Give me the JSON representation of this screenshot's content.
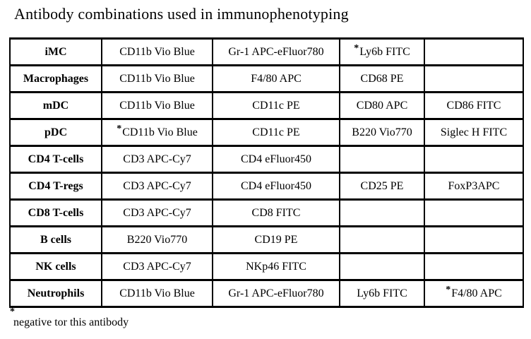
{
  "title": "Antibody combinations used in immunophenotyping",
  "footnote": {
    "marker": "*",
    "text": "negative tor this antibody"
  },
  "colors": {
    "text": "#000000",
    "border": "#000000",
    "background": "#ffffff"
  },
  "table": {
    "rows": [
      {
        "cell_type": "iMC",
        "antibodies": [
          {
            "text": "CD11b Vio Blue",
            "negative": false
          },
          {
            "text": "Gr-1 APC-eFluor780",
            "negative": false
          },
          {
            "text": "Ly6b FITC",
            "negative": true
          },
          {
            "text": "",
            "negative": false
          }
        ]
      },
      {
        "cell_type": "Macrophages",
        "antibodies": [
          {
            "text": "CD11b Vio Blue",
            "negative": false
          },
          {
            "text": "F4/80 APC",
            "negative": false
          },
          {
            "text": "CD68 PE",
            "negative": false
          },
          {
            "text": "",
            "negative": false
          }
        ]
      },
      {
        "cell_type": "mDC",
        "antibodies": [
          {
            "text": "CD11b Vio Blue",
            "negative": false
          },
          {
            "text": "CD11c PE",
            "negative": false
          },
          {
            "text": "CD80 APC",
            "negative": false
          },
          {
            "text": "CD86 FITC",
            "negative": false
          }
        ]
      },
      {
        "cell_type": "pDC",
        "antibodies": [
          {
            "text": "CD11b Vio Blue",
            "negative": true
          },
          {
            "text": "CD11c PE",
            "negative": false
          },
          {
            "text": "B220 Vio770",
            "negative": false
          },
          {
            "text": "Siglec H FITC",
            "negative": false
          }
        ]
      },
      {
        "cell_type": "CD4 T-cells",
        "antibodies": [
          {
            "text": "CD3 APC-Cy7",
            "negative": false
          },
          {
            "text": "CD4 eFluor450",
            "negative": false
          },
          {
            "text": "",
            "negative": false
          },
          {
            "text": "",
            "negative": false
          }
        ]
      },
      {
        "cell_type": "CD4 T-regs",
        "antibodies": [
          {
            "text": "CD3 APC-Cy7",
            "negative": false
          },
          {
            "text": "CD4 eFluor450",
            "negative": false
          },
          {
            "text": "CD25 PE",
            "negative": false
          },
          {
            "text": "FoxP3APC",
            "negative": false
          }
        ]
      },
      {
        "cell_type": "CD8 T-cells",
        "antibodies": [
          {
            "text": "CD3 APC-Cy7",
            "negative": false
          },
          {
            "text": "CD8 FITC",
            "negative": false
          },
          {
            "text": "",
            "negative": false
          },
          {
            "text": "",
            "negative": false
          }
        ]
      },
      {
        "cell_type": "B cells",
        "antibodies": [
          {
            "text": "B220 Vio770",
            "negative": false
          },
          {
            "text": "CD19 PE",
            "negative": false
          },
          {
            "text": "",
            "negative": false
          },
          {
            "text": "",
            "negative": false
          }
        ]
      },
      {
        "cell_type": "NK cells",
        "antibodies": [
          {
            "text": "CD3 APC-Cy7",
            "negative": false
          },
          {
            "text": "NKp46 FITC",
            "negative": false
          },
          {
            "text": "",
            "negative": false
          },
          {
            "text": "",
            "negative": false
          }
        ]
      },
      {
        "cell_type": "Neutrophils",
        "antibodies": [
          {
            "text": "CD11b Vio Blue",
            "negative": false
          },
          {
            "text": "Gr-1 APC-eFluor780",
            "negative": false
          },
          {
            "text": "Ly6b FITC",
            "negative": false
          },
          {
            "text": "F4/80 APC",
            "negative": true
          }
        ]
      }
    ]
  }
}
